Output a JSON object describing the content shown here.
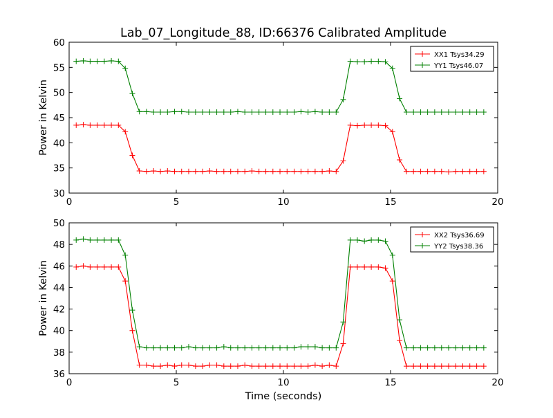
{
  "title": "Lab_07_Longitude_88, ID:66376 Calibrated Amplitude",
  "colors": {
    "xx": "#ff0000",
    "yy": "#008000"
  },
  "chart_data": [
    {
      "type": "line",
      "ylabel": "Power in Kelvin",
      "xlabel": "",
      "xlim": [
        0,
        20
      ],
      "ylim": [
        30,
        60
      ],
      "xticks": [
        0,
        5,
        10,
        15,
        20
      ],
      "yticks": [
        30,
        35,
        40,
        45,
        50,
        55,
        60
      ],
      "legend_position": "top-right",
      "x": [
        0.33,
        0.66,
        0.98,
        1.31,
        1.64,
        1.97,
        2.3,
        2.62,
        2.95,
        3.28,
        3.61,
        3.94,
        4.26,
        4.59,
        4.92,
        5.25,
        5.58,
        5.9,
        6.23,
        6.56,
        6.89,
        7.22,
        7.54,
        7.87,
        8.2,
        8.53,
        8.86,
        9.18,
        9.51,
        9.84,
        10.17,
        10.5,
        10.82,
        11.15,
        11.48,
        11.81,
        12.14,
        12.46,
        12.79,
        13.12,
        13.45,
        13.78,
        14.1,
        14.43,
        14.76,
        15.09,
        15.42,
        15.74,
        16.07,
        16.4,
        16.73,
        17.06,
        17.38,
        17.71,
        18.04,
        18.37,
        18.7,
        19.02,
        19.35
      ],
      "series": [
        {
          "name": "XX1 Tsys34.29",
          "color": "#ff0000",
          "values": [
            43.5,
            43.6,
            43.5,
            43.5,
            43.5,
            43.5,
            43.5,
            42.2,
            37.5,
            34.4,
            34.3,
            34.4,
            34.3,
            34.4,
            34.3,
            34.3,
            34.3,
            34.3,
            34.3,
            34.4,
            34.3,
            34.3,
            34.3,
            34.3,
            34.3,
            34.4,
            34.3,
            34.3,
            34.3,
            34.3,
            34.3,
            34.3,
            34.3,
            34.3,
            34.3,
            34.3,
            34.4,
            34.3,
            36.4,
            43.5,
            43.4,
            43.5,
            43.5,
            43.5,
            43.4,
            42.2,
            36.6,
            34.3,
            34.3,
            34.3,
            34.3,
            34.3,
            34.3,
            34.2,
            34.3,
            34.3,
            34.3,
            34.3,
            34.3
          ]
        },
        {
          "name": "YY1 Tsys46.07",
          "color": "#008000",
          "values": [
            56.2,
            56.3,
            56.2,
            56.2,
            56.2,
            56.3,
            56.2,
            54.8,
            49.8,
            46.2,
            46.2,
            46.1,
            46.1,
            46.1,
            46.2,
            46.2,
            46.1,
            46.1,
            46.1,
            46.1,
            46.1,
            46.1,
            46.1,
            46.2,
            46.1,
            46.1,
            46.1,
            46.1,
            46.1,
            46.1,
            46.1,
            46.1,
            46.2,
            46.1,
            46.2,
            46.1,
            46.1,
            46.1,
            48.6,
            56.2,
            56.1,
            56.1,
            56.2,
            56.2,
            56.1,
            54.8,
            48.8,
            46.1,
            46.1,
            46.1,
            46.1,
            46.1,
            46.1,
            46.1,
            46.1,
            46.1,
            46.1,
            46.1,
            46.1
          ]
        }
      ]
    },
    {
      "type": "line",
      "ylabel": "Power in Kelvin",
      "xlabel": "Time (seconds)",
      "xlim": [
        0,
        20
      ],
      "ylim": [
        36,
        50
      ],
      "xticks": [
        0,
        5,
        10,
        15,
        20
      ],
      "yticks": [
        36,
        38,
        40,
        42,
        44,
        46,
        48,
        50
      ],
      "legend_position": "top-right",
      "x": [
        0.33,
        0.66,
        0.98,
        1.31,
        1.64,
        1.97,
        2.3,
        2.62,
        2.95,
        3.28,
        3.61,
        3.94,
        4.26,
        4.59,
        4.92,
        5.25,
        5.58,
        5.9,
        6.23,
        6.56,
        6.89,
        7.22,
        7.54,
        7.87,
        8.2,
        8.53,
        8.86,
        9.18,
        9.51,
        9.84,
        10.17,
        10.5,
        10.82,
        11.15,
        11.48,
        11.81,
        12.14,
        12.46,
        12.79,
        13.12,
        13.45,
        13.78,
        14.1,
        14.43,
        14.76,
        15.09,
        15.42,
        15.74,
        16.07,
        16.4,
        16.73,
        17.06,
        17.38,
        17.71,
        18.04,
        18.37,
        18.7,
        19.02,
        19.35
      ],
      "series": [
        {
          "name": "XX2 Tsys36.69",
          "color": "#ff0000",
          "values": [
            45.9,
            46.0,
            45.9,
            45.9,
            45.9,
            45.9,
            45.9,
            44.6,
            40.0,
            36.8,
            36.8,
            36.7,
            36.7,
            36.8,
            36.7,
            36.8,
            36.8,
            36.7,
            36.7,
            36.8,
            36.8,
            36.7,
            36.7,
            36.7,
            36.8,
            36.7,
            36.7,
            36.7,
            36.7,
            36.7,
            36.7,
            36.7,
            36.7,
            36.7,
            36.8,
            36.7,
            36.8,
            36.7,
            38.8,
            45.9,
            45.9,
            45.9,
            45.9,
            45.9,
            45.8,
            44.6,
            39.1,
            36.7,
            36.7,
            36.7,
            36.7,
            36.7,
            36.7,
            36.7,
            36.7,
            36.7,
            36.7,
            36.7,
            36.7
          ]
        },
        {
          "name": "YY2 Tsys38.36",
          "color": "#008000",
          "values": [
            48.4,
            48.5,
            48.4,
            48.4,
            48.4,
            48.4,
            48.4,
            47.0,
            41.9,
            38.5,
            38.4,
            38.4,
            38.4,
            38.4,
            38.4,
            38.4,
            38.5,
            38.4,
            38.4,
            38.4,
            38.4,
            38.5,
            38.4,
            38.4,
            38.4,
            38.4,
            38.4,
            38.4,
            38.4,
            38.4,
            38.4,
            38.4,
            38.5,
            38.5,
            38.5,
            38.4,
            38.4,
            38.4,
            40.8,
            48.4,
            48.4,
            48.3,
            48.4,
            48.4,
            48.3,
            47.0,
            41.0,
            38.4,
            38.4,
            38.4,
            38.4,
            38.4,
            38.4,
            38.4,
            38.4,
            38.4,
            38.4,
            38.4,
            38.4
          ]
        }
      ]
    }
  ]
}
